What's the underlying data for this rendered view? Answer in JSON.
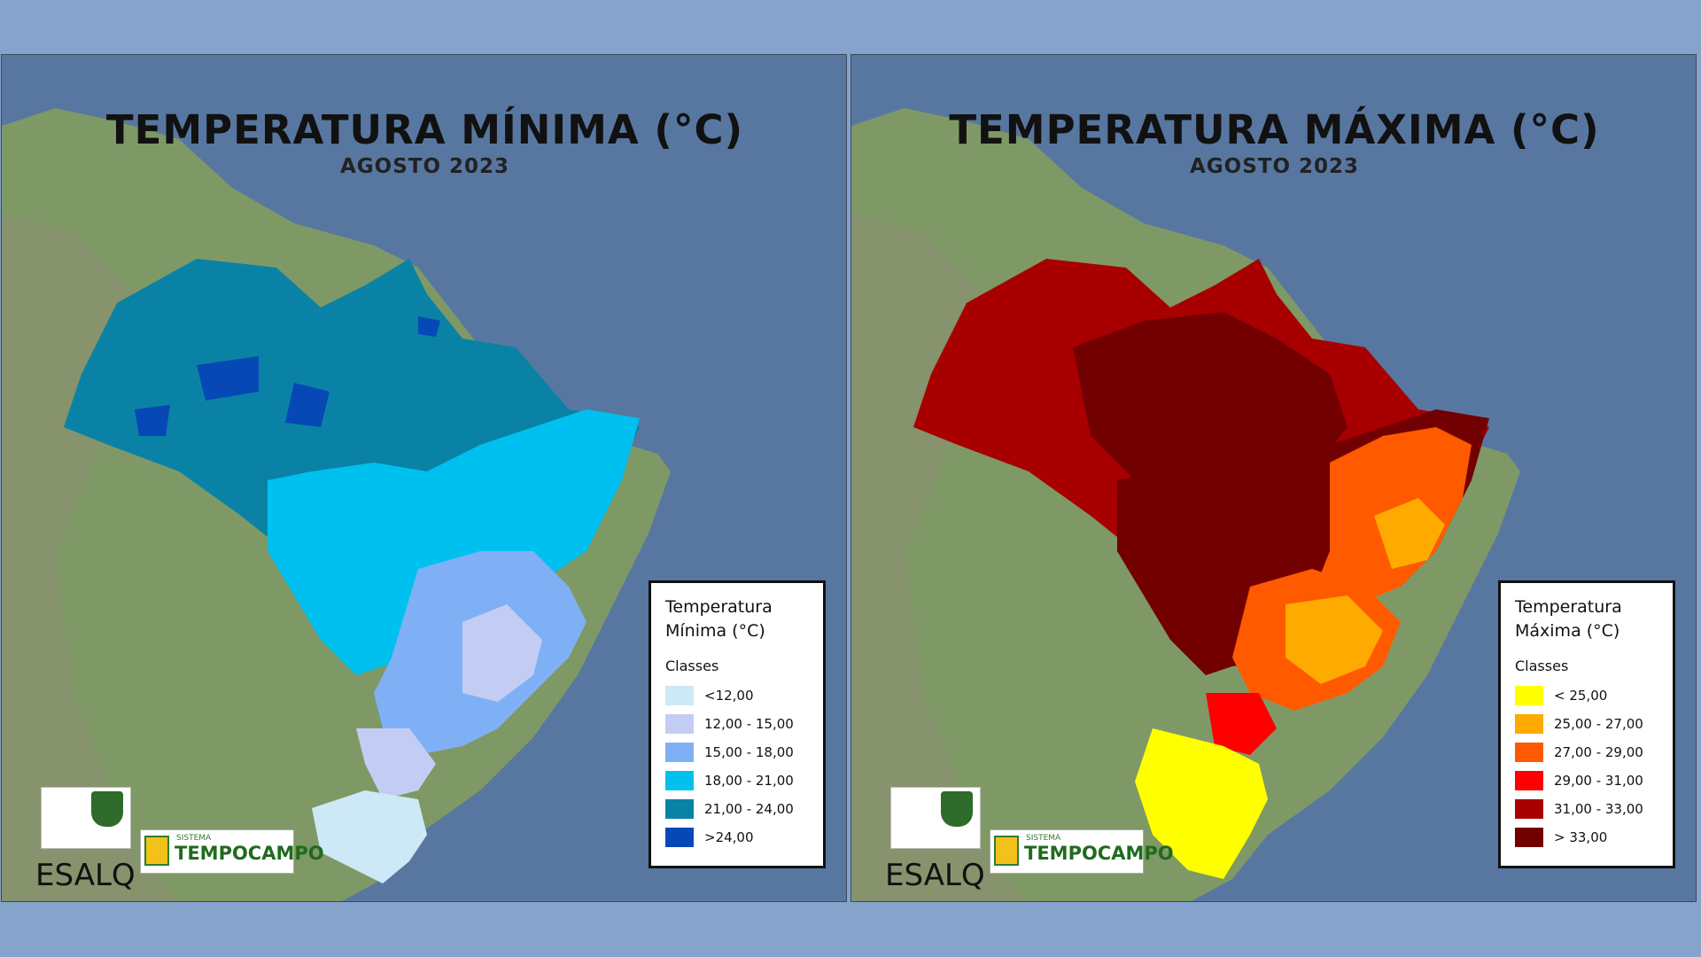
{
  "panels": [
    {
      "id": "min",
      "title": "TEMPERATURA MÍNIMA (°C)",
      "subtitle": "AGOSTO 2023",
      "legend_title_line1": "Temperatura",
      "legend_title_line2": "Mínima (°C)",
      "legend_classes_label": "Classes",
      "legend": [
        {
          "label": "<12,00",
          "color": "#cde8f6"
        },
        {
          "label": "12,00 - 15,00",
          "color": "#c3cdf3"
        },
        {
          "label": "15,00 - 18,00",
          "color": "#7fb0f5"
        },
        {
          "label": "18,00 - 21,00",
          "color": "#00c0f0"
        },
        {
          "label": "21,00 - 24,00",
          "color": "#0a82a5"
        },
        {
          "label": ">24,00",
          "color": "#0648b6"
        }
      ]
    },
    {
      "id": "max",
      "title": "TEMPERATURA MÁXIMA (°C)",
      "subtitle": "AGOSTO 2023",
      "legend_title_line1": "Temperatura",
      "legend_title_line2": "Máxima (°C)",
      "legend_classes_label": "Classes",
      "legend": [
        {
          "label": "< 25,00",
          "color": "#ffff00"
        },
        {
          "label": "25,00 - 27,00",
          "color": "#ffaa00"
        },
        {
          "label": "27,00 - 29,00",
          "color": "#ff5a00"
        },
        {
          "label": "29,00 - 31,00",
          "color": "#ff0000"
        },
        {
          "label": "31,00 - 33,00",
          "color": "#a80000"
        },
        {
          "label": "> 33,00",
          "color": "#730000"
        }
      ]
    }
  ],
  "logos": {
    "esalq": "ESALQ",
    "tempocampo_small": "SISTEMA",
    "tempocampo_big": "TEMPOCAMPO"
  },
  "colors": {
    "ocean": "#5877a0",
    "land": "#7f9966",
    "background": "#86a3cb"
  }
}
